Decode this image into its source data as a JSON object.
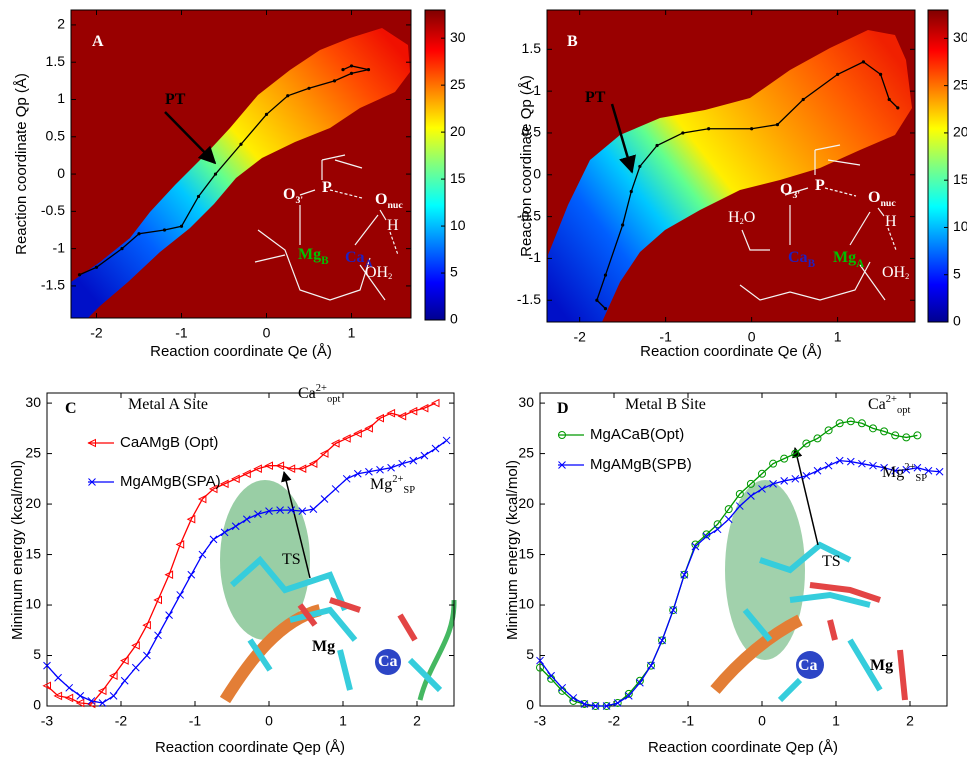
{
  "chart_data": [
    {
      "type": "heatmap",
      "xlabel": "Reaction coordinate Qe (Å)",
      "ylabel": "Reaction coordinate Qp (Å)",
      "xlim": [
        -2.3,
        1.7
      ],
      "xticks": [
        -2,
        -1,
        0,
        1
      ],
      "ylim": [
        -1.93,
        2.2
      ],
      "yticks": [
        -1.5,
        -1,
        -0.5,
        0,
        0.5,
        1,
        1.5,
        2
      ],
      "clim": [
        0,
        33
      ],
      "cticks": [
        0,
        5,
        10,
        15,
        20,
        25,
        30
      ],
      "background": "#990000",
      "path": {
        "color": "#000000",
        "x": [
          -2.2,
          -2.0,
          -1.7,
          -1.5,
          -1.2,
          -1.0,
          -0.8,
          -0.6,
          -0.3,
          0,
          0.25,
          0.5,
          0.8,
          1.0,
          1.2,
          1.0,
          0.9
        ],
        "y": [
          -1.35,
          -1.25,
          -1.0,
          -0.8,
          -0.75,
          -0.7,
          -0.3,
          0,
          0.4,
          0.8,
          1.05,
          1.15,
          1.25,
          1.35,
          1.4,
          1.45,
          1.4
        ]
      },
      "annotations": [
        {
          "parts": [
            {
              "text": "A"
            }
          ],
          "color": "#ffffff"
        },
        {
          "parts": [
            {
              "text": "PT"
            }
          ],
          "color": "#000000"
        },
        {
          "parts": [
            {
              "text": "O"
            },
            {
              "sub": "3'"
            }
          ],
          "color": "#ffffff"
        },
        {
          "parts": [
            {
              "text": "P"
            }
          ],
          "color": "#ffffff"
        },
        {
          "parts": [
            {
              "text": "O"
            },
            {
              "sub": "nuc"
            }
          ],
          "color": "#ffffff"
        },
        {
          "parts": [
            {
              "text": "H"
            }
          ],
          "color": "#ffffff"
        },
        {
          "parts": [
            {
              "text": "Mg"
            },
            {
              "sub": "B"
            }
          ],
          "color": "#00c000"
        },
        {
          "parts": [
            {
              "text": "Ca"
            },
            {
              "sub": "A"
            }
          ],
          "color": "#2020c0"
        },
        {
          "parts": [
            {
              "text": "OH"
            },
            {
              "sub": "2"
            }
          ],
          "color": "#ffffff"
        }
      ]
    },
    {
      "type": "heatmap",
      "xlabel": "Reaction coordinate Qe (Å)",
      "ylabel": "Reaction coordinate Qp (Å)",
      "xlim": [
        -2.38,
        1.9
      ],
      "xticks": [
        -2,
        -1,
        0,
        1
      ],
      "ylim": [
        -1.76,
        1.97
      ],
      "yticks": [
        -1.5,
        -1,
        -0.5,
        0,
        0.5,
        1,
        1.5
      ],
      "clim": [
        0,
        33
      ],
      "cticks": [
        0,
        5,
        10,
        15,
        20,
        25,
        30
      ],
      "background": "#990000",
      "path": {
        "color": "#000000",
        "x": [
          -1.7,
          -1.8,
          -1.7,
          -1.5,
          -1.4,
          -1.3,
          -1.1,
          -0.8,
          -0.5,
          0,
          0.3,
          0.6,
          1.0,
          1.3,
          1.5,
          1.6,
          1.7
        ],
        "y": [
          -1.6,
          -1.5,
          -1.2,
          -0.6,
          -0.2,
          0.1,
          0.35,
          0.5,
          0.55,
          0.55,
          0.6,
          0.9,
          1.2,
          1.35,
          1.2,
          0.9,
          0.8
        ]
      },
      "annotations": [
        {
          "parts": [
            {
              "text": "B"
            }
          ],
          "color": "#ffffff"
        },
        {
          "parts": [
            {
              "text": "PT"
            }
          ],
          "color": "#000000"
        },
        {
          "parts": [
            {
              "text": "O"
            },
            {
              "sub": "3'"
            }
          ],
          "color": "#ffffff"
        },
        {
          "parts": [
            {
              "text": "P"
            }
          ],
          "color": "#ffffff"
        },
        {
          "parts": [
            {
              "text": "O"
            },
            {
              "sub": "nuc"
            }
          ],
          "color": "#ffffff"
        },
        {
          "parts": [
            {
              "text": "H"
            }
          ],
          "color": "#ffffff"
        },
        {
          "parts": [
            {
              "text": "H"
            },
            {
              "sub": "2"
            },
            {
              "text": "O"
            }
          ],
          "color": "#ffffff"
        },
        {
          "parts": [
            {
              "text": "Ca"
            },
            {
              "sub": "B"
            }
          ],
          "color": "#2020c0"
        },
        {
          "parts": [
            {
              "text": "Mg"
            },
            {
              "sub": "A"
            }
          ],
          "color": "#00c000"
        },
        {
          "parts": [
            {
              "text": "OH"
            },
            {
              "sub": "2"
            }
          ],
          "color": "#ffffff"
        }
      ]
    },
    {
      "type": "line",
      "xlabel": "Reaction coordinate Qep (Å)",
      "ylabel": "Minimum energy (kcal/mol)",
      "xlim": [
        -3,
        2.5
      ],
      "xticks": [
        -3,
        -2,
        -1,
        0,
        1,
        2
      ],
      "ylim": [
        0,
        31
      ],
      "yticks": [
        0,
        5,
        10,
        15,
        20,
        25,
        30
      ],
      "x": [
        -3,
        -2.85,
        -2.7,
        -2.55,
        -2.4,
        -2.25,
        -2.1,
        -1.95,
        -1.8,
        -1.65,
        -1.5,
        -1.35,
        -1.2,
        -1.05,
        -0.9,
        -0.75,
        -0.6,
        -0.45,
        -0.3,
        -0.15,
        0,
        0.15,
        0.3,
        0.45,
        0.6,
        0.75,
        0.9,
        1.05,
        1.2,
        1.35,
        1.5,
        1.65,
        1.8,
        1.95,
        2.1,
        2.25,
        2.4
      ],
      "series": [
        {
          "name": "CaAMgB (Opt)",
          "color": "#ff0000",
          "marker": "triangle-left",
          "values": [
            2,
            1,
            0.8,
            0.3,
            0.2,
            1.5,
            3,
            4.5,
            6,
            8,
            10.5,
            13,
            16,
            18.5,
            20.5,
            21.5,
            22,
            22.5,
            23,
            23.5,
            23.8,
            23.8,
            23.5,
            23.5,
            24,
            25,
            26,
            26.5,
            27,
            27.5,
            28.5,
            29,
            28.7,
            29.2,
            29.5,
            30,
            null
          ]
        },
        {
          "name": "MgAMgB(SPA)",
          "color": "#0000ff",
          "marker": "x",
          "values": [
            4,
            2.8,
            1.8,
            1,
            0.5,
            0.3,
            1,
            2.5,
            3.8,
            5,
            7,
            9,
            11,
            13,
            15,
            16.5,
            17.2,
            17.8,
            18.5,
            19,
            19.3,
            19.4,
            19.4,
            19.3,
            19.5,
            20.5,
            21.5,
            22.5,
            23,
            23.2,
            23.4,
            23.6,
            24,
            24.3,
            24.8,
            25.5,
            26.3
          ]
        }
      ],
      "annotations": [
        {
          "parts": [
            {
              "text": "C"
            }
          ],
          "color": "#000000"
        },
        {
          "parts": [
            {
              "text": "Metal A Site"
            }
          ],
          "color": "#000000"
        },
        {
          "parts": [
            {
              "text": "Ca"
            },
            {
              "sup": "2+"
            },
            {
              "sub": "opt"
            }
          ],
          "color": "#000000"
        },
        {
          "parts": [
            {
              "text": "Mg"
            },
            {
              "sup": "2+"
            },
            {
              "sub": "SP"
            }
          ],
          "color": "#000000"
        },
        {
          "parts": [
            {
              "text": "TS"
            }
          ],
          "color": "#000000"
        },
        {
          "parts": [
            {
              "text": "Mg"
            }
          ],
          "color": "#000000"
        },
        {
          "parts": [
            {
              "text": "Ca"
            }
          ],
          "color": "#ffffff"
        }
      ]
    },
    {
      "type": "line",
      "xlabel": "Reaction coordinate Qep (Å)",
      "ylabel": "Minimum energy (kcal/mol)",
      "xlim": [
        -3,
        2.5
      ],
      "xticks": [
        -3,
        -2,
        -1,
        0,
        1,
        2
      ],
      "ylim": [
        0,
        31
      ],
      "yticks": [
        0,
        5,
        10,
        15,
        20,
        25,
        30
      ],
      "x": [
        -3,
        -2.85,
        -2.7,
        -2.55,
        -2.4,
        -2.25,
        -2.1,
        -1.95,
        -1.8,
        -1.65,
        -1.5,
        -1.35,
        -1.2,
        -1.05,
        -0.9,
        -0.75,
        -0.6,
        -0.45,
        -0.3,
        -0.15,
        0,
        0.15,
        0.3,
        0.45,
        0.6,
        0.75,
        0.9,
        1.05,
        1.2,
        1.35,
        1.5,
        1.65,
        1.8,
        1.95,
        2.1,
        2.25,
        2.4
      ],
      "series": [
        {
          "name": "MgACaB(Opt)",
          "color": "#009900",
          "marker": "circle",
          "values": [
            3.8,
            2.7,
            1.5,
            0.5,
            0.2,
            0,
            0,
            0.3,
            1.2,
            2.5,
            4,
            6.5,
            9.5,
            13,
            16,
            17,
            18,
            19.5,
            21,
            22,
            23,
            24,
            24.5,
            25,
            26,
            26.5,
            27.3,
            28,
            28.2,
            28,
            27.5,
            27.2,
            26.8,
            26.6,
            26.8,
            null,
            null
          ]
        },
        {
          "name": "MgAMgB(SPB)",
          "color": "#0000ff",
          "marker": "x",
          "values": [
            4.5,
            3,
            1.8,
            0.8,
            0.2,
            0,
            0,
            0.3,
            1,
            2.3,
            4,
            6.5,
            9.5,
            13,
            15.8,
            16.8,
            17.5,
            18.5,
            19.8,
            20.8,
            21.5,
            22,
            22.3,
            22.5,
            22.8,
            23.3,
            23.8,
            24.3,
            24.2,
            24,
            23.8,
            23.6,
            23.3,
            23.4,
            23.6,
            23.3,
            23.2
          ]
        }
      ],
      "annotations": [
        {
          "parts": [
            {
              "text": "D"
            }
          ],
          "color": "#000000"
        },
        {
          "parts": [
            {
              "text": "Metal B Site"
            }
          ],
          "color": "#000000"
        },
        {
          "parts": [
            {
              "text": "Ca"
            },
            {
              "sup": "2+"
            },
            {
              "sub": "opt"
            }
          ],
          "color": "#000000"
        },
        {
          "parts": [
            {
              "text": "Mg"
            },
            {
              "sup": "2+"
            },
            {
              "sub": "SP"
            }
          ],
          "color": "#000000"
        },
        {
          "parts": [
            {
              "text": "TS"
            }
          ],
          "color": "#000000"
        },
        {
          "parts": [
            {
              "text": "Ca"
            }
          ],
          "color": "#ffffff"
        },
        {
          "parts": [
            {
              "text": "Mg"
            }
          ],
          "color": "#000000"
        }
      ]
    }
  ]
}
